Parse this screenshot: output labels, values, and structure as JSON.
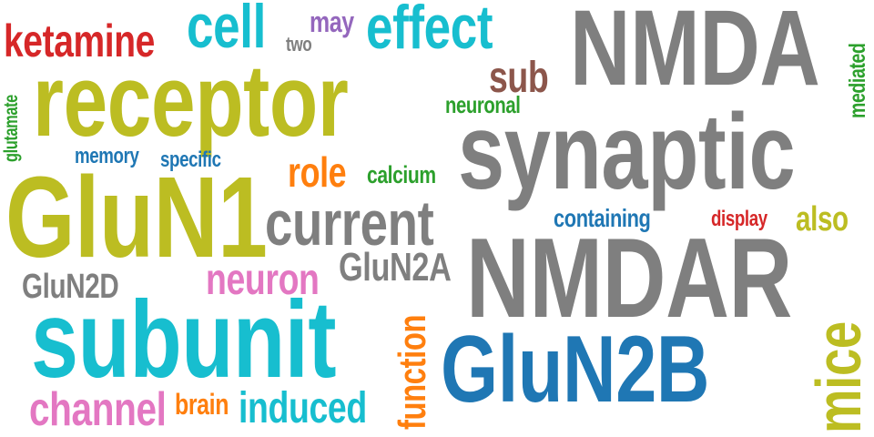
{
  "colors": {
    "gray": "#7f7f7f",
    "olive": "#bcbd22",
    "cyan": "#17becf",
    "blue": "#1f77b4",
    "red": "#d62728",
    "green": "#2ca02c",
    "orange": "#ff7f0e",
    "pink": "#e377c2",
    "purple": "#9467bd",
    "brown": "#8c564b"
  },
  "words": {
    "nmda": "NMDA",
    "receptor": "receptor",
    "synaptic": "synaptic",
    "glun1": "GluN1",
    "nmdar": "NMDAR",
    "subunit": "subunit",
    "glun2b": "GluN2B",
    "current": "current",
    "effect": "effect",
    "cell": "cell",
    "ketamine": "ketamine",
    "mice": "mice",
    "glun2a": "GluN2A",
    "neuron": "neuron",
    "channel": "channel",
    "induced": "induced",
    "glun2d": "GluN2D",
    "function": "function",
    "sub": "sub",
    "role": "role",
    "may": "may",
    "also": "also",
    "containing": "containing",
    "calcium": "calcium",
    "neuronal": "neuronal",
    "memory": "memory",
    "specific": "specific",
    "display": "display",
    "mediated": "mediated",
    "glutamate": "glutamate",
    "brain": "brain",
    "two": "two"
  }
}
